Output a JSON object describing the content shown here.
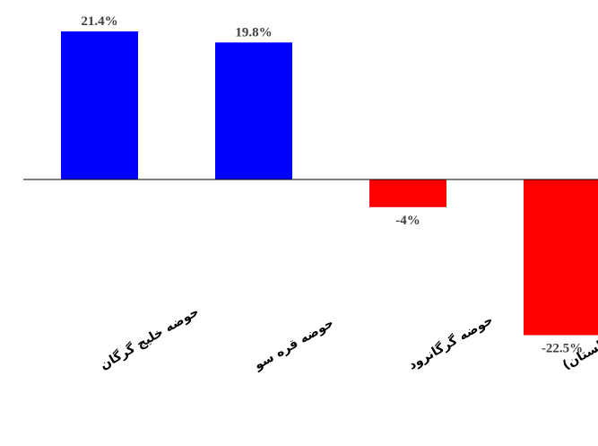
{
  "chart_data": {
    "type": "bar",
    "categories": [
      "حوضه خلیج گرگان",
      "حوضه قره سو",
      "حوضه گرگانرود",
      "حوضه نکاء رود(گلستان)"
    ],
    "values": [
      21.4,
      19.8,
      -4,
      -22.5
    ],
    "data_labels": [
      "21.4%",
      "19.8%",
      "-4%",
      "-22.5%"
    ],
    "ylim": [
      -22.5,
      21.4
    ],
    "grid": false,
    "legend": "none",
    "colors": {
      "positive": "#0000FF",
      "negative": "#FF0000",
      "axis": "#000000"
    }
  }
}
